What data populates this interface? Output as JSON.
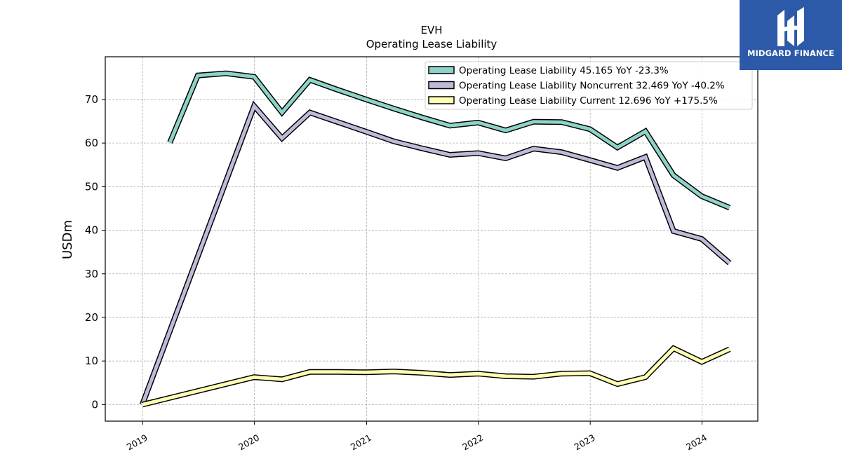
{
  "chart_data": {
    "type": "line",
    "title": "EVH",
    "subtitle": "Operating Lease Liability",
    "ylabel": "USDm",
    "xlabel": "",
    "x_ticks": [
      "2019",
      "2020",
      "2021",
      "2022",
      "2023",
      "2024"
    ],
    "y_ticks": [
      0,
      10,
      20,
      30,
      40,
      50,
      60,
      70
    ],
    "xlim": [
      "2018-09-01",
      "2024-07-01"
    ],
    "ylim": [
      -3.8,
      79.8
    ],
    "grid": true,
    "legend_position": "top-right",
    "series": [
      {
        "name": "Operating Lease Liability  45.165 YoY -23.3%",
        "color": "#8dd3c7",
        "points": [
          [
            "2019-03-31",
            60.1
          ],
          [
            "2019-06-30",
            75.5
          ],
          [
            "2019-09-30",
            76.0
          ],
          [
            "2019-12-31",
            75.2
          ],
          [
            "2020-03-31",
            67.0
          ],
          [
            "2020-06-30",
            74.5
          ],
          [
            "2020-09-30",
            72.2
          ],
          [
            "2020-12-31",
            70.0
          ],
          [
            "2021-03-31",
            67.9
          ],
          [
            "2021-06-30",
            65.9
          ],
          [
            "2021-09-30",
            64.0
          ],
          [
            "2021-12-31",
            64.7
          ],
          [
            "2022-03-31",
            62.9
          ],
          [
            "2022-06-30",
            64.9
          ],
          [
            "2022-09-30",
            64.8
          ],
          [
            "2022-12-31",
            63.2
          ],
          [
            "2023-03-31",
            59.0
          ],
          [
            "2023-06-30",
            62.7
          ],
          [
            "2023-09-30",
            52.6
          ],
          [
            "2023-12-31",
            47.8
          ],
          [
            "2024-03-31",
            45.165
          ]
        ]
      },
      {
        "name": "Operating Lease Liability Noncurrent  32.469 YoY -40.2%",
        "color": "#bebada",
        "points": [
          [
            "2018-12-31",
            0.0
          ],
          [
            "2019-12-31",
            68.5
          ],
          [
            "2020-03-31",
            61.1
          ],
          [
            "2020-06-30",
            67.0
          ],
          [
            "2020-09-30",
            64.8
          ],
          [
            "2020-12-31",
            62.6
          ],
          [
            "2021-03-31",
            60.4
          ],
          [
            "2021-06-30",
            58.8
          ],
          [
            "2021-09-30",
            57.3
          ],
          [
            "2021-12-31",
            57.7
          ],
          [
            "2022-03-31",
            56.5
          ],
          [
            "2022-06-30",
            58.7
          ],
          [
            "2022-09-30",
            57.9
          ],
          [
            "2022-12-31",
            56.1
          ],
          [
            "2023-03-31",
            54.3
          ],
          [
            "2023-06-30",
            56.8
          ],
          [
            "2023-09-30",
            39.8
          ],
          [
            "2023-12-31",
            38.0
          ],
          [
            "2024-03-31",
            32.469
          ]
        ]
      },
      {
        "name": "Operating Lease Liability Current  12.696 YoY +175.5%",
        "color": "#ffffb3",
        "points": [
          [
            "2018-12-31",
            0.0
          ],
          [
            "2019-12-31",
            6.3
          ],
          [
            "2020-03-31",
            5.8
          ],
          [
            "2020-06-30",
            7.5
          ],
          [
            "2020-09-30",
            7.5
          ],
          [
            "2020-12-31",
            7.4
          ],
          [
            "2021-03-31",
            7.6
          ],
          [
            "2021-06-30",
            7.3
          ],
          [
            "2021-09-30",
            6.8
          ],
          [
            "2021-12-31",
            7.1
          ],
          [
            "2022-03-31",
            6.5
          ],
          [
            "2022-06-30",
            6.4
          ],
          [
            "2022-09-30",
            7.1
          ],
          [
            "2022-12-31",
            7.2
          ],
          [
            "2023-03-31",
            4.7
          ],
          [
            "2023-06-30",
            6.3
          ],
          [
            "2023-09-30",
            12.9
          ],
          [
            "2023-12-31",
            9.8
          ],
          [
            "2024-03-31",
            12.696
          ]
        ]
      }
    ]
  },
  "logo": {
    "text": "MIDGARD FINANCE",
    "background": "#2c5aa8"
  }
}
